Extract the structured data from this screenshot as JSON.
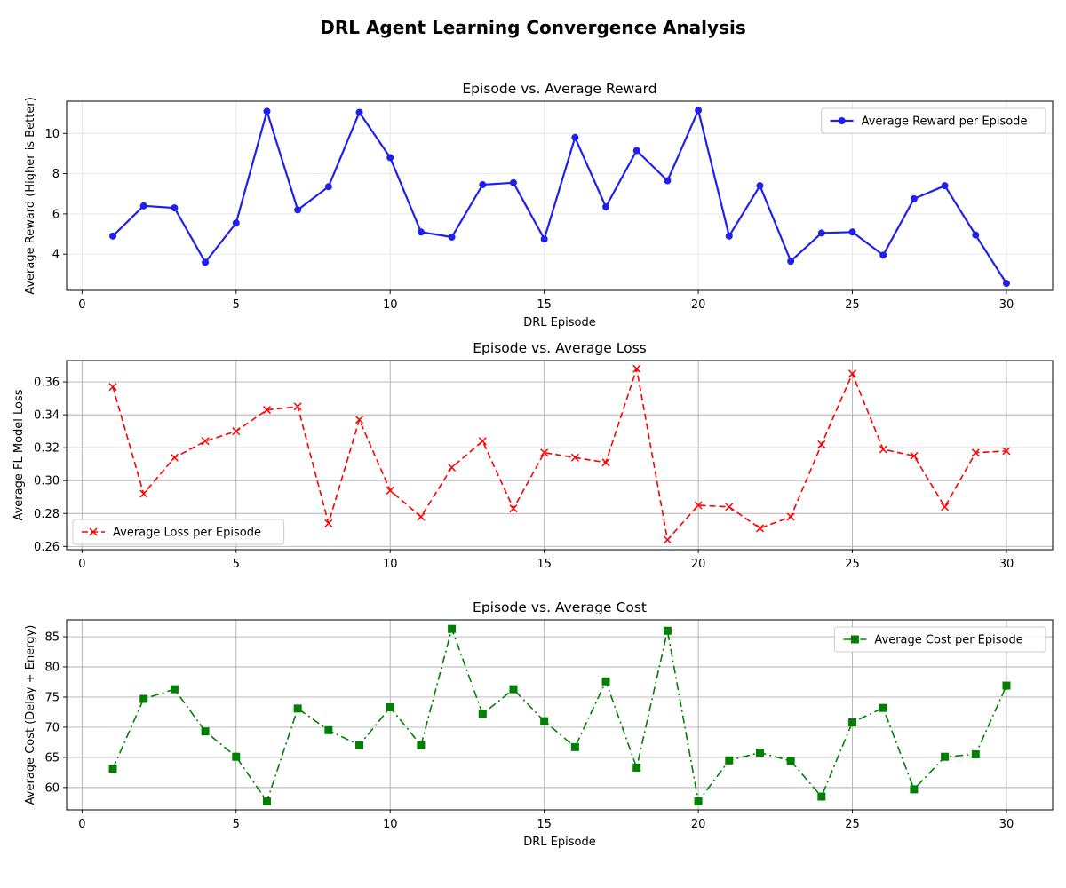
{
  "figure_title": "DRL Agent Learning Convergence Analysis",
  "chart_data": [
    {
      "type": "line",
      "title": "Episode vs. Average Reward",
      "xlabel": "DRL Episode",
      "ylabel": "Average Reward (Higher is Better)",
      "xlim": [
        -0.5,
        31.5
      ],
      "ylim": [
        2.2,
        11.6
      ],
      "xticks": [
        0,
        5,
        10,
        15,
        20,
        25,
        30
      ],
      "yticks": [
        4,
        6,
        8,
        10
      ],
      "grid": "light",
      "legend_position": "upper right",
      "series": [
        {
          "name": "Average Reward per Episode",
          "color": "#2020ee",
          "line_style": "solid",
          "marker": "circle",
          "x": [
            1,
            2,
            3,
            4,
            5,
            6,
            7,
            8,
            9,
            10,
            11,
            12,
            13,
            14,
            15,
            16,
            17,
            18,
            19,
            20,
            21,
            22,
            23,
            24,
            25,
            26,
            27,
            28,
            29,
            30
          ],
          "y": [
            4.9,
            6.4,
            6.3,
            3.6,
            5.55,
            11.1,
            6.2,
            7.35,
            11.05,
            8.8,
            5.1,
            4.85,
            7.45,
            7.55,
            4.75,
            9.8,
            6.35,
            9.15,
            7.65,
            11.15,
            4.9,
            7.4,
            3.65,
            5.05,
            5.1,
            3.95,
            6.75,
            7.4,
            4.95,
            2.55
          ]
        }
      ]
    },
    {
      "type": "line",
      "title": "Episode vs. Average Loss",
      "xlabel": "",
      "ylabel": "Average FL Model Loss",
      "xlim": [
        -0.5,
        31.5
      ],
      "ylim": [
        0.258,
        0.373
      ],
      "xticks": [
        0,
        5,
        10,
        15,
        20,
        25,
        30
      ],
      "yticks": [
        0.26,
        0.28,
        0.3,
        0.32,
        0.34,
        0.36
      ],
      "ytick_labels": [
        "0.26",
        "0.28",
        "0.30",
        "0.32",
        "0.34",
        "0.36"
      ],
      "grid": "dark",
      "legend_position": "lower left",
      "series": [
        {
          "name": "Average Loss per Episode",
          "color": "#ff0000",
          "line_style": "dashed",
          "marker": "x",
          "x": [
            1,
            2,
            3,
            4,
            5,
            6,
            7,
            8,
            9,
            10,
            11,
            12,
            13,
            14,
            15,
            16,
            17,
            18,
            19,
            20,
            21,
            22,
            23,
            24,
            25,
            26,
            27,
            28,
            29,
            30
          ],
          "y": [
            0.357,
            0.292,
            0.314,
            0.324,
            0.33,
            0.343,
            0.345,
            0.274,
            0.337,
            0.294,
            0.278,
            0.308,
            0.324,
            0.283,
            0.317,
            0.314,
            0.311,
            0.368,
            0.264,
            0.285,
            0.284,
            0.271,
            0.278,
            0.322,
            0.365,
            0.319,
            0.315,
            0.284,
            0.317,
            0.318
          ]
        }
      ]
    },
    {
      "type": "line",
      "title": "Episode vs. Average Cost",
      "xlabel": "DRL Episode",
      "ylabel": "Average Cost (Delay + Energy)",
      "xlim": [
        -0.5,
        31.5
      ],
      "ylim": [
        56.3,
        87.8
      ],
      "xticks": [
        0,
        5,
        10,
        15,
        20,
        25,
        30
      ],
      "yticks": [
        60,
        65,
        70,
        75,
        80,
        85
      ],
      "grid": "dark",
      "legend_position": "upper right",
      "series": [
        {
          "name": "Average Cost per Episode",
          "color": "#008000",
          "line_style": "dashdot",
          "marker": "square",
          "x": [
            1,
            2,
            3,
            4,
            5,
            6,
            7,
            8,
            9,
            10,
            11,
            12,
            13,
            14,
            15,
            16,
            17,
            18,
            19,
            20,
            21,
            22,
            23,
            24,
            25,
            26,
            27,
            28,
            29,
            30
          ],
          "y": [
            63.1,
            74.7,
            76.3,
            69.3,
            65.1,
            57.7,
            73.1,
            69.5,
            67.0,
            73.3,
            67.0,
            86.3,
            72.2,
            76.3,
            71.0,
            66.7,
            77.6,
            63.3,
            86.0,
            57.7,
            64.5,
            65.8,
            64.4,
            58.5,
            70.8,
            73.2,
            59.7,
            65.1,
            65.5,
            76.9
          ]
        }
      ]
    }
  ]
}
